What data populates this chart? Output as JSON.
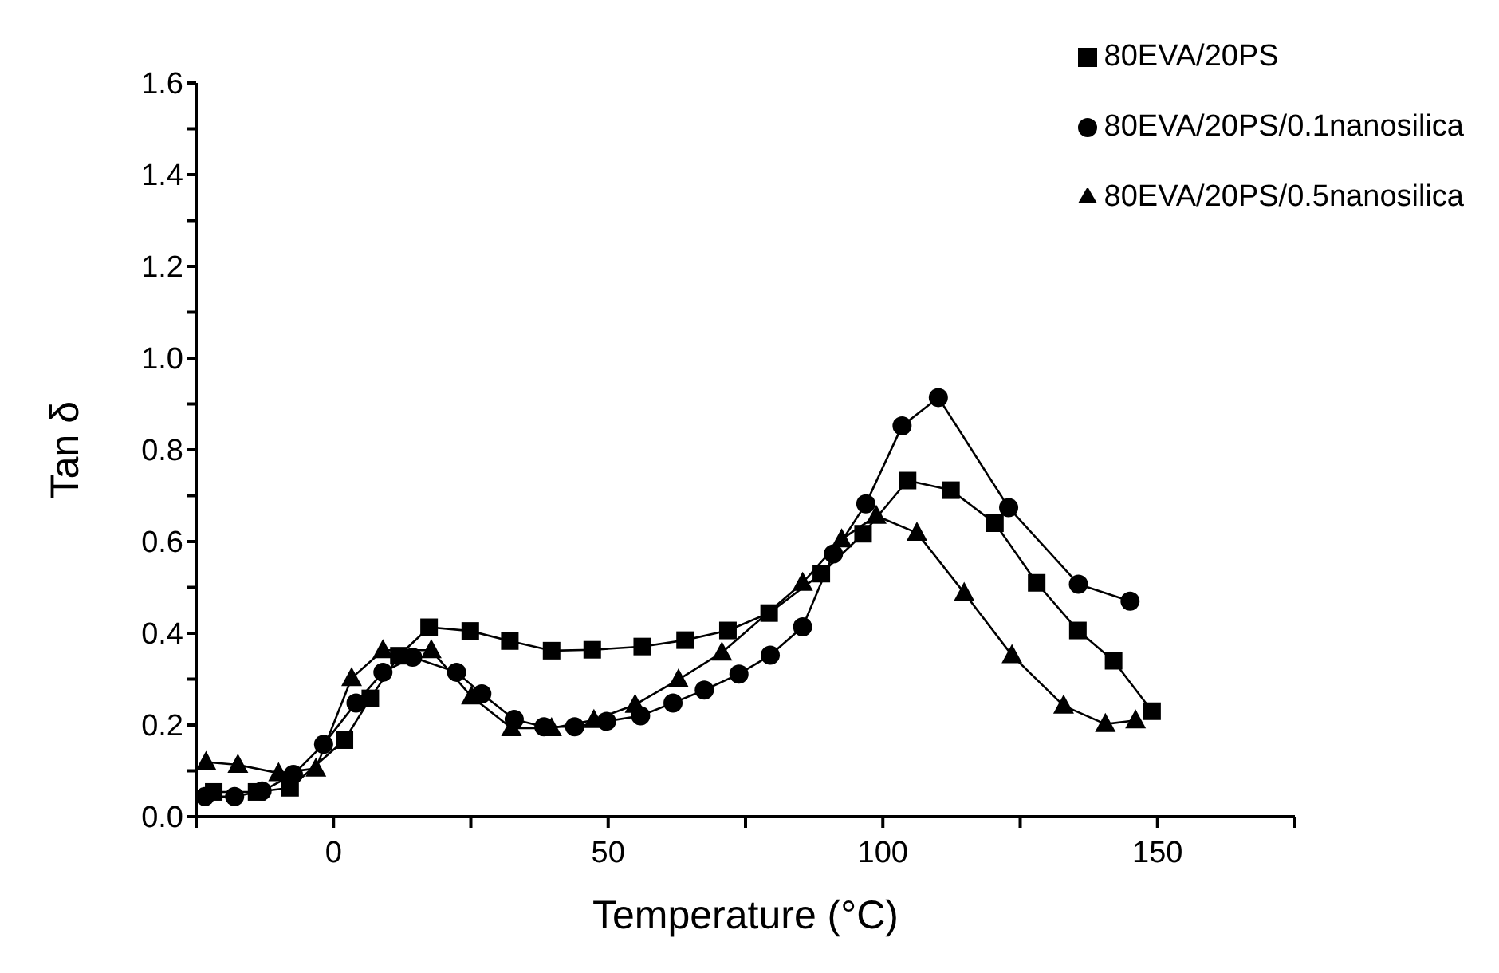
{
  "chart_data": {
    "type": "line",
    "xlabel": "Temperature (°C)",
    "ylabel": "Tan δ",
    "xlim": [
      -25,
      175
    ],
    "xticks": [
      {
        "value": -25,
        "label": null
      },
      0,
      {
        "value": 25,
        "label": null
      },
      50,
      {
        "value": 75,
        "label": null
      },
      100,
      {
        "value": 125,
        "label": null
      },
      150,
      {
        "value": 175,
        "label": null
      }
    ],
    "ylim": [
      0,
      1.6
    ],
    "yticks": [
      {
        "value": 0,
        "label": "0.0"
      },
      {
        "value": 0.1,
        "label": null
      },
      0.2,
      {
        "value": 0.3,
        "label": null
      },
      0.4,
      {
        "value": 0.5,
        "label": null
      },
      0.6,
      {
        "value": 0.7,
        "label": null
      },
      0.8,
      {
        "value": 0.9,
        "label": null
      },
      {
        "value": 1,
        "label": "1.0"
      },
      {
        "value": 1.1,
        "label": null
      },
      1.2,
      {
        "value": 1.3,
        "label": null
      },
      1.4,
      {
        "value": 1.5,
        "label": null
      },
      1.6
    ],
    "grid": false,
    "legend": "top right",
    "line_style": "solid",
    "series": [
      {
        "name": "80EVA/20PS",
        "color": "#000000",
        "marker": "square",
        "x": [
          -21.8,
          -14,
          -7.9,
          2,
          6.7,
          11.9,
          17.4,
          24.9,
          32.1,
          39.7,
          47.1,
          56.2,
          64,
          71.8,
          79.3,
          88.8,
          96.4,
          104.5,
          112.4,
          120.4,
          128,
          135.5,
          142,
          149
        ],
        "values": [
          0.054,
          0.054,
          0.063,
          0.167,
          0.258,
          0.351,
          0.413,
          0.405,
          0.383,
          0.362,
          0.364,
          0.371,
          0.385,
          0.406,
          0.444,
          0.53,
          0.617,
          0.733,
          0.712,
          0.64,
          0.51,
          0.406,
          0.34,
          0.23
        ]
      },
      {
        "name": "80EVA/20PS/0.1nanosilica",
        "color": "#000000",
        "marker": "circle",
        "x": [
          -23.4,
          -18,
          -13,
          -7.3,
          -1.8,
          4.1,
          9,
          14.4,
          22.4,
          27,
          32.9,
          38.3,
          43.9,
          49.7,
          55.9,
          61.8,
          67.5,
          73.8,
          79.5,
          85.4,
          91,
          96.9,
          103.5,
          110.1,
          122.9,
          135.6,
          145
        ],
        "values": [
          0.044,
          0.044,
          0.056,
          0.092,
          0.158,
          0.248,
          0.315,
          0.348,
          0.315,
          0.268,
          0.212,
          0.196,
          0.196,
          0.208,
          0.22,
          0.248,
          0.276,
          0.311,
          0.352,
          0.414,
          0.573,
          0.682,
          0.852,
          0.914,
          0.674,
          0.507,
          0.47
        ]
      },
      {
        "name": "80EVA/20PS/0.5nanosilica",
        "color": "#000000",
        "marker": "triangle",
        "x": [
          -23.2,
          -17.4,
          -10,
          -3.2,
          3.3,
          9,
          17.8,
          25.1,
          32.4,
          39.7,
          47.4,
          54.9,
          62.8,
          70.7,
          85.4,
          92.5,
          98.8,
          106.2,
          114.8,
          123.5,
          132.9,
          140.5,
          146
        ],
        "values": [
          0.119,
          0.113,
          0.095,
          0.105,
          0.302,
          0.363,
          0.363,
          0.262,
          0.193,
          0.193,
          0.211,
          0.244,
          0.299,
          0.358,
          0.51,
          0.605,
          0.656,
          0.619,
          0.488,
          0.352,
          0.242,
          0.202,
          0.21
        ]
      }
    ]
  }
}
